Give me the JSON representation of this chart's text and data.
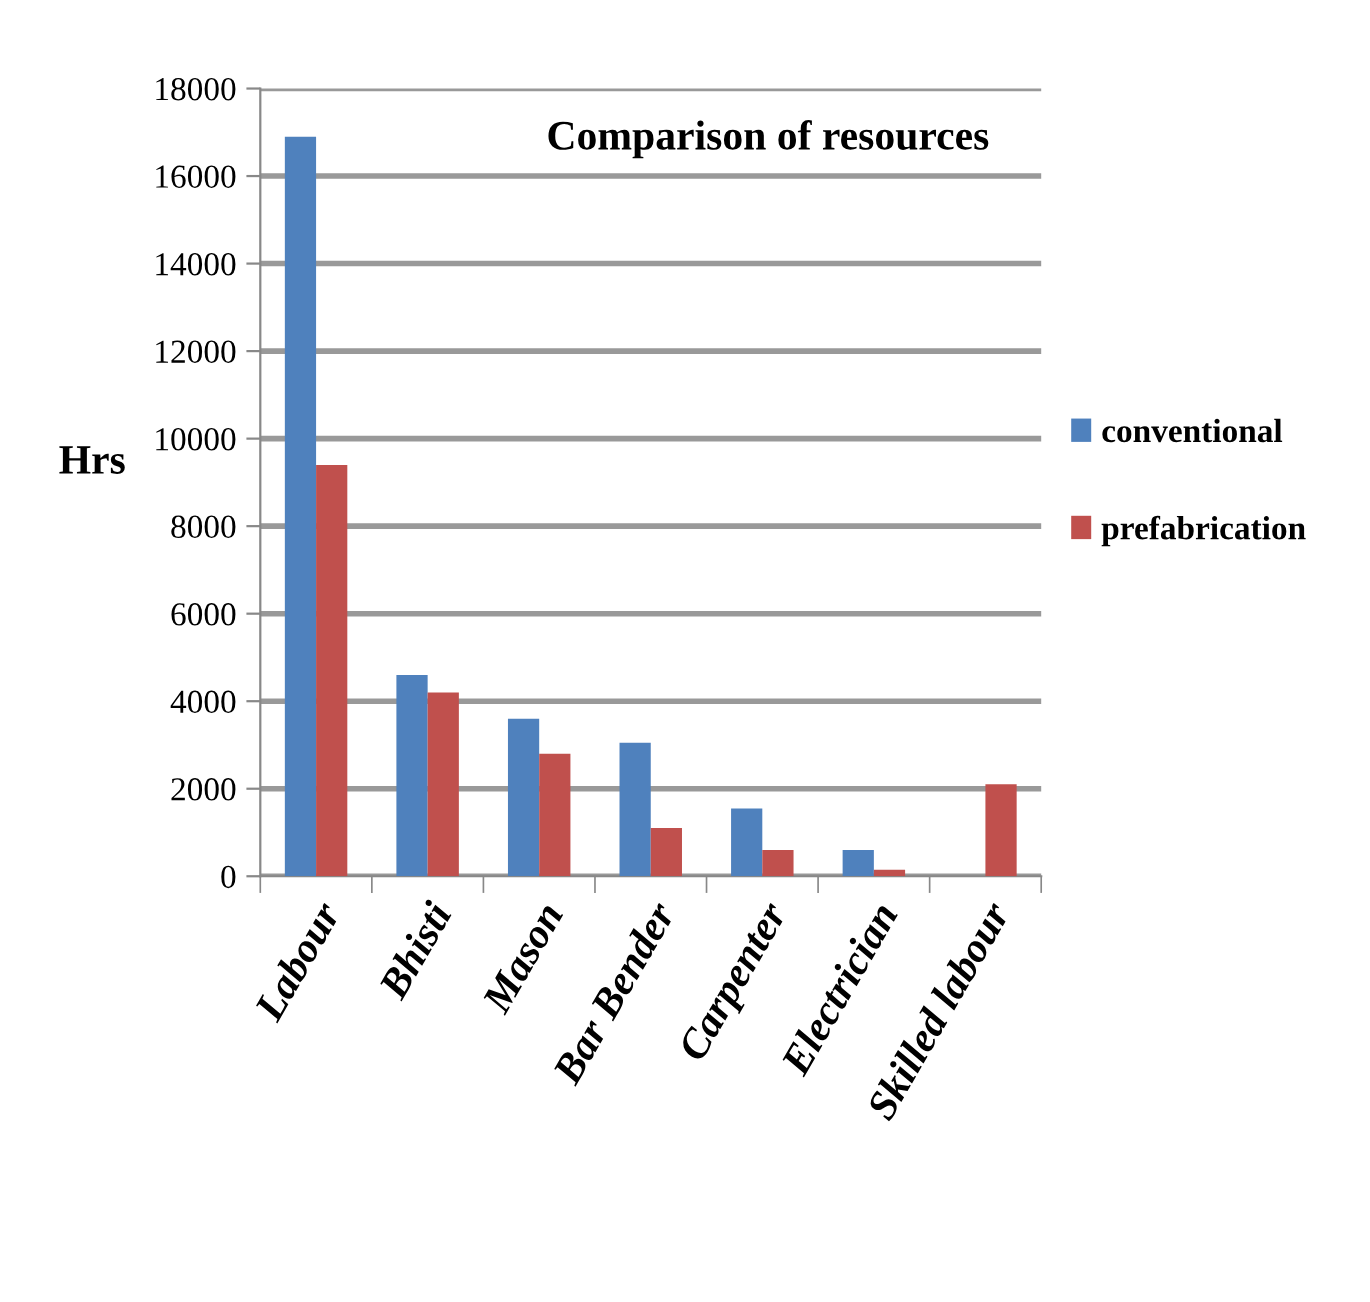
{
  "chart_data": {
    "type": "bar",
    "title": "Comparison of resources",
    "ylabel": "Hrs",
    "categories": [
      "Labour",
      "Bhisti",
      "Mason",
      "Bar Bender",
      "Carpenter",
      "Electrician",
      "Skilled labour"
    ],
    "series": [
      {
        "name": "conventional",
        "color": "#4f81bd",
        "values": [
          16900,
          4600,
          3600,
          3050,
          1550,
          600,
          0
        ]
      },
      {
        "name": "prefabrication",
        "color": "#c0504d",
        "values": [
          9400,
          4200,
          2800,
          1100,
          600,
          150,
          2100
        ]
      }
    ],
    "ylim": [
      0,
      18000
    ],
    "yticks": [
      0,
      2000,
      4000,
      6000,
      8000,
      10000,
      12000,
      14000,
      16000,
      18000
    ],
    "grid": "y",
    "legend": "right"
  }
}
